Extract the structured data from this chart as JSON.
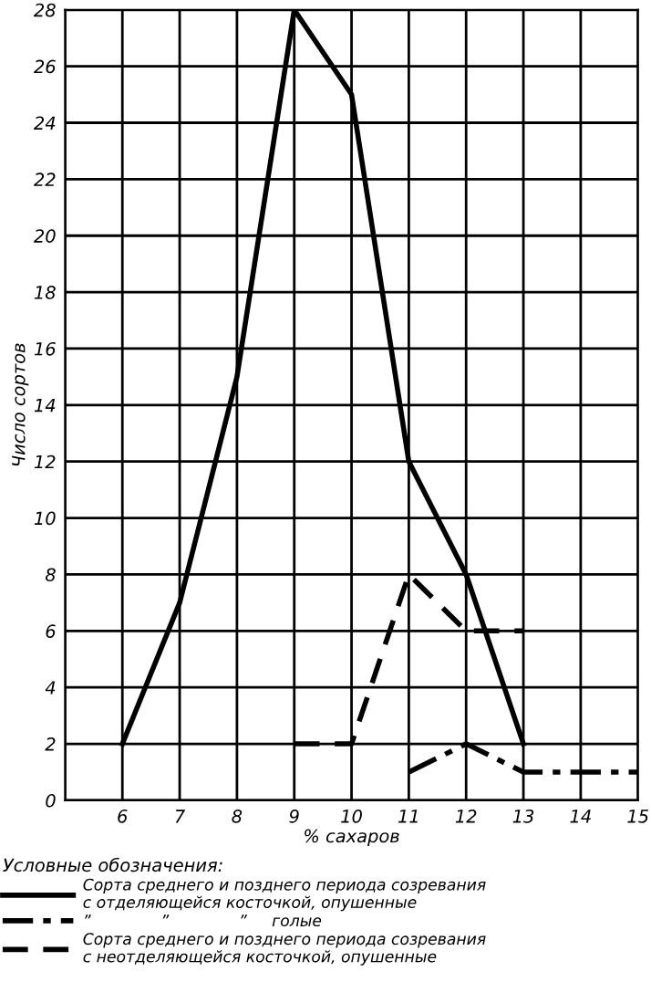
{
  "chart_data": {
    "type": "line",
    "xlabel": "% сахаров",
    "ylabel": "Число сортов",
    "legend_title": "Условные обозначения:",
    "xlim": [
      5,
      15
    ],
    "xticks": [
      {
        "value": 5,
        "label": null
      },
      6,
      7,
      8,
      9,
      10,
      11,
      12,
      13,
      14,
      15
    ],
    "ylim": [
      0,
      28
    ],
    "yticks": [
      0,
      2,
      4,
      6,
      8,
      10,
      12,
      14,
      16,
      18,
      20,
      22,
      24,
      26,
      28
    ],
    "grid": true,
    "legend": "bottom",
    "marker": "none",
    "series": [
      {
        "name": "Сорта среднего и позднего периода созревания\nс отделяющейся косточкой, опушенные",
        "color": "#000000",
        "line_style": "solid",
        "x": [
          6,
          7,
          8,
          9,
          10,
          11,
          12,
          13
        ],
        "values": [
          2,
          7,
          15,
          28,
          25,
          12,
          8,
          2
        ]
      },
      {
        "name": "”              ”              ”     голые",
        "color": "#000000",
        "line_style": "dashdot",
        "x": [
          11,
          12,
          13,
          14,
          15
        ],
        "values": [
          1,
          2,
          1,
          1,
          1
        ]
      },
      {
        "name": "Сорта среднего и позднего периода созревания\nс неотделяющейся косточкой, опушенные",
        "color": "#000000",
        "line_style": "dashed",
        "x": [
          9,
          10,
          11,
          12,
          13
        ],
        "values": [
          2,
          2,
          8,
          6,
          6
        ]
      }
    ]
  }
}
